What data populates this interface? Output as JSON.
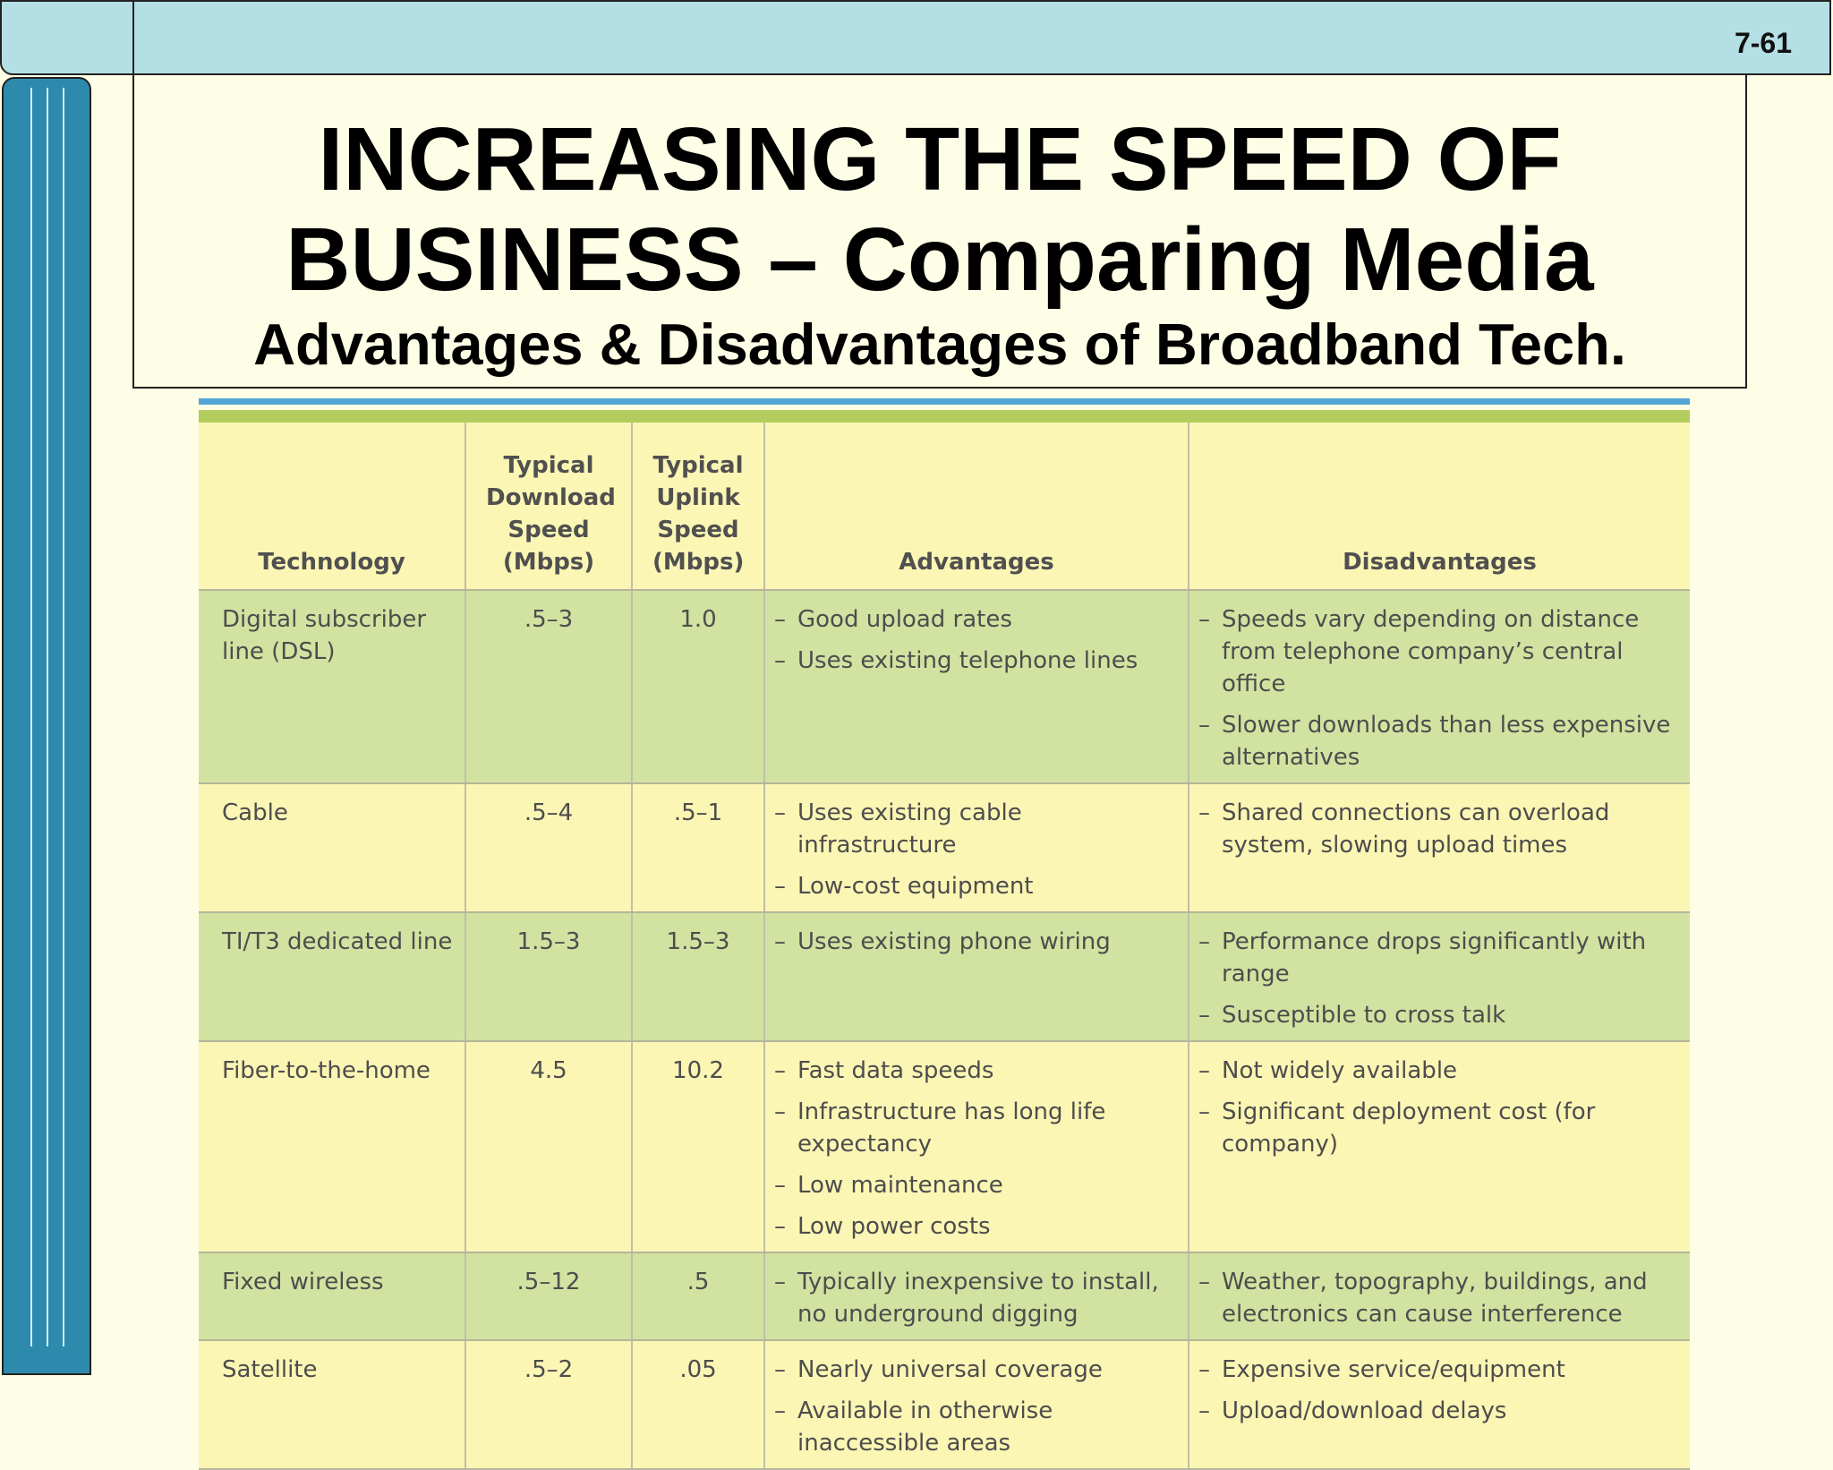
{
  "slide_number": "7-61",
  "title": {
    "line1": "INCREASING THE SPEED OF",
    "line2": "BUSINESS – Comparing Media",
    "subtitle": "Advantages & Disadvantages of Broadband Tech."
  },
  "table": {
    "headers": {
      "technology": "Technology",
      "download": "Typical Download Speed (Mbps)",
      "uplink": "Typical Uplink Speed (Mbps)",
      "advantages": "Advantages",
      "disadvantages": "Disadvantages"
    },
    "rows": [
      {
        "technology": "Digital subscriber line (DSL)",
        "download": ".5–3",
        "uplink": "1.0",
        "advantages": [
          "Good upload rates",
          "Uses existing telephone lines"
        ],
        "disadvantages": [
          "Speeds vary depending on distance from telephone company’s central office",
          "Slower downloads than less expensive alternatives"
        ]
      },
      {
        "technology": "Cable",
        "download": ".5–4",
        "uplink": ".5–1",
        "advantages": [
          "Uses existing cable infrastructure",
          "Low-cost equipment"
        ],
        "disadvantages": [
          "Shared connections can overload system, slowing upload times"
        ]
      },
      {
        "technology": "TI/T3 dedicated line",
        "download": "1.5–3",
        "uplink": "1.5–3",
        "advantages": [
          "Uses existing phone wiring"
        ],
        "disadvantages": [
          "Performance drops significantly with range",
          "Susceptible to cross talk"
        ]
      },
      {
        "technology": "Fiber-to-the-home",
        "download": "4.5",
        "uplink": "10.2",
        "advantages": [
          "Fast data speeds",
          "Infrastructure has long life expectancy",
          "Low maintenance",
          "Low power costs"
        ],
        "disadvantages": [
          "Not widely available",
          "Significant deployment cost (for company)"
        ]
      },
      {
        "technology": "Fixed wireless",
        "download": ".5–12",
        "uplink": ".5",
        "advantages": [
          "Typically inexpensive to install, no underground digging"
        ],
        "disadvantages": [
          "Weather, topography, buildings, and electronics can cause interference"
        ]
      },
      {
        "technology": "Satellite",
        "download": ".5–2",
        "uplink": ".05",
        "advantages": [
          "Nearly universal coverage",
          "Available in otherwise inaccessible areas"
        ],
        "disadvantages": [
          "Expensive service/equipment",
          "Upload/download delays"
        ]
      }
    ]
  }
}
